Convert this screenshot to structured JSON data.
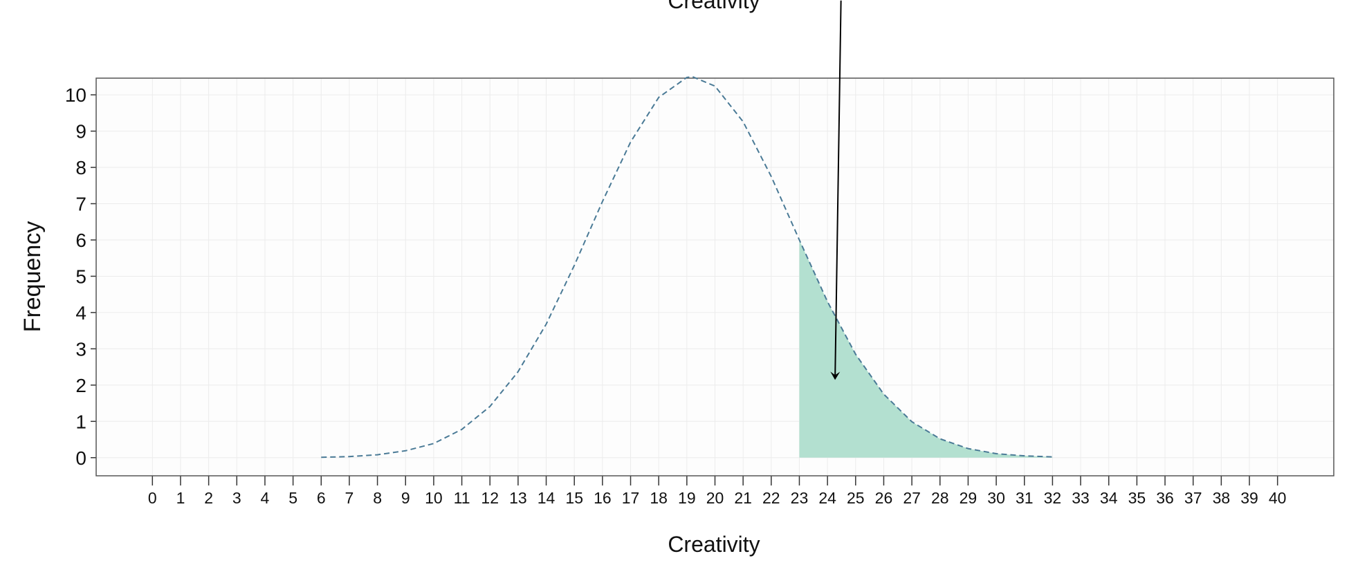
{
  "chart_data": {
    "type": "area_line",
    "title": "Creativity",
    "x_label": "Creativity",
    "y_label": "Frequency",
    "x": [
      6,
      7,
      8,
      9,
      10,
      11,
      12,
      13,
      14,
      15,
      16,
      17,
      18,
      19,
      19.2,
      20,
      21,
      22,
      23,
      24,
      25,
      26,
      27,
      28,
      29,
      30,
      31,
      32
    ],
    "series": [
      {
        "color": "#4a7a96",
        "values": [
          0.01,
          0.03,
          0.08,
          0.19,
          0.39,
          0.78,
          1.41,
          2.37,
          3.68,
          5.3,
          7.06,
          8.7,
          9.93,
          10.48,
          10.5,
          10.24,
          9.26,
          7.75,
          6.0,
          4.3,
          2.85,
          1.75,
          0.99,
          0.52,
          0.25,
          0.11,
          0.05,
          0.02
        ]
      }
    ],
    "shade_from": 23,
    "shade_color": "#b3e0d0",
    "arrow": {
      "from": [
        24.48,
        12.6
      ],
      "to": [
        24.27,
        2.18
      ]
    },
    "xlim": [
      -2,
      42
    ],
    "ylim": [
      -0.5,
      10.46
    ],
    "xticks": [
      0,
      1,
      2,
      3,
      4,
      5,
      6,
      7,
      8,
      9,
      10,
      11,
      12,
      13,
      14,
      15,
      16,
      17,
      18,
      19,
      20,
      21,
      22,
      23,
      24,
      25,
      26,
      27,
      28,
      29,
      30,
      31,
      32,
      33,
      34,
      35,
      36,
      37,
      38,
      39,
      40
    ],
    "yticks": [
      0,
      1,
      2,
      3,
      4,
      5,
      6,
      7,
      8,
      9,
      10
    ],
    "grid": true
  }
}
